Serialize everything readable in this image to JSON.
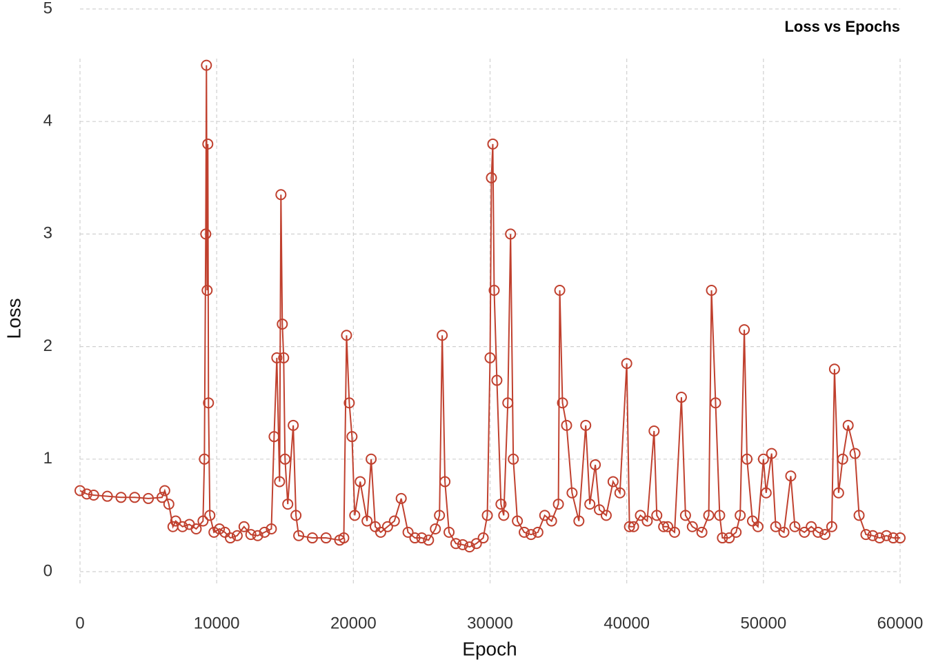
{
  "chart_data": {
    "type": "line",
    "title": "Loss vs Epochs",
    "x_label": "Epoch",
    "y_label": "Loss",
    "color": "#c0402e",
    "grid": true,
    "xlim": [
      0,
      60000
    ],
    "ylim": [
      0,
      5
    ],
    "xticks": [
      0,
      10000,
      20000,
      30000,
      40000,
      50000,
      60000
    ],
    "yticks": [
      0,
      1,
      2,
      3,
      4,
      5
    ],
    "x": [
      0,
      500,
      1000,
      2000,
      3000,
      4000,
      5000,
      6000,
      6200,
      6500,
      6800,
      7000,
      7500,
      8000,
      8500,
      9000,
      9100,
      9200,
      9250,
      9300,
      9350,
      9400,
      9500,
      9800,
      10200,
      10600,
      11000,
      11500,
      12000,
      12500,
      13000,
      13500,
      14000,
      14200,
      14400,
      14600,
      14700,
      14800,
      14900,
      15000,
      15200,
      15600,
      15800,
      16000,
      17000,
      18000,
      19000,
      19300,
      19500,
      19700,
      19900,
      20100,
      20500,
      21000,
      21300,
      21600,
      22000,
      22500,
      23000,
      23500,
      24000,
      24500,
      25000,
      25500,
      26000,
      26300,
      26500,
      26700,
      27000,
      27500,
      28000,
      28500,
      29000,
      29500,
      29800,
      30000,
      30100,
      30200,
      30300,
      30500,
      30800,
      31000,
      31300,
      31500,
      31700,
      32000,
      32500,
      33000,
      33500,
      34000,
      34500,
      35000,
      35100,
      35300,
      35600,
      36000,
      36500,
      37000,
      37300,
      37700,
      38000,
      38500,
      39000,
      39500,
      40000,
      40200,
      40500,
      41000,
      41500,
      42000,
      42200,
      42700,
      43000,
      43500,
      44000,
      44300,
      44800,
      45500,
      46000,
      46200,
      46500,
      46800,
      47000,
      47500,
      48000,
      48300,
      48600,
      48800,
      49200,
      49600,
      50000,
      50200,
      50600,
      50900,
      51500,
      52000,
      52300,
      53000,
      53500,
      54000,
      54500,
      55000,
      55200,
      55500,
      55800,
      56200,
      56700,
      57000,
      57500,
      58000,
      58500,
      59000,
      59500,
      60000
    ],
    "values": [
      0.72,
      0.69,
      0.68,
      0.67,
      0.66,
      0.66,
      0.65,
      0.66,
      0.72,
      0.6,
      0.4,
      0.45,
      0.4,
      0.42,
      0.38,
      0.45,
      1.0,
      3.0,
      4.5,
      2.5,
      3.8,
      1.5,
      0.5,
      0.35,
      0.38,
      0.35,
      0.3,
      0.32,
      0.4,
      0.33,
      0.32,
      0.35,
      0.38,
      1.2,
      1.9,
      0.8,
      3.35,
      2.2,
      1.9,
      1.0,
      0.6,
      1.3,
      0.5,
      0.32,
      0.3,
      0.3,
      0.28,
      0.3,
      2.1,
      1.5,
      1.2,
      0.5,
      0.8,
      0.45,
      1.0,
      0.4,
      0.35,
      0.4,
      0.45,
      0.65,
      0.35,
      0.3,
      0.3,
      0.28,
      0.38,
      0.5,
      2.1,
      0.8,
      0.35,
      0.25,
      0.24,
      0.22,
      0.25,
      0.3,
      0.5,
      1.9,
      3.5,
      3.8,
      2.5,
      1.7,
      0.6,
      0.5,
      1.5,
      3.0,
      1.0,
      0.45,
      0.35,
      0.33,
      0.35,
      0.5,
      0.45,
      0.6,
      2.5,
      1.5,
      1.3,
      0.7,
      0.45,
      1.3,
      0.6,
      0.95,
      0.55,
      0.5,
      0.8,
      0.7,
      1.85,
      0.4,
      0.4,
      0.5,
      0.45,
      1.25,
      0.5,
      0.4,
      0.4,
      0.35,
      1.55,
      0.5,
      0.4,
      0.35,
      0.5,
      2.5,
      1.5,
      0.5,
      0.3,
      0.3,
      0.35,
      0.5,
      2.15,
      1.0,
      0.45,
      0.4,
      1.0,
      0.7,
      1.05,
      0.4,
      0.35,
      0.85,
      0.4,
      0.35,
      0.4,
      0.35,
      0.33,
      0.4,
      1.8,
      0.7,
      1.0,
      1.3,
      1.05,
      0.5,
      0.33,
      0.32,
      0.3,
      0.32,
      0.3,
      0.3
    ]
  }
}
